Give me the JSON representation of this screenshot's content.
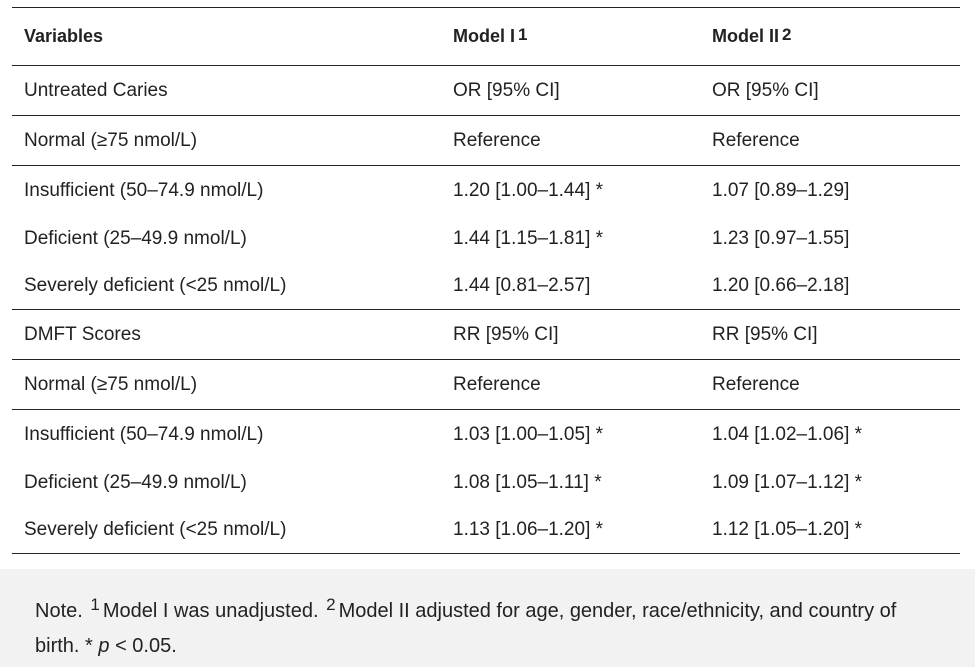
{
  "table": {
    "headers": [
      {
        "label": "Variables",
        "sup": ""
      },
      {
        "label": "Model I",
        "sup": "1"
      },
      {
        "label": "Model II",
        "sup": "2"
      }
    ],
    "rows": [
      [
        "Untreated Caries",
        "OR [95% CI]",
        "OR [95% CI]"
      ],
      [
        "Normal (≥75 nmol/L)",
        "Reference",
        "Reference"
      ],
      [
        "Insufficient (50–74.9 nmol/L)",
        "1.20 [1.00–1.44] *",
        "1.07 [0.89–1.29]"
      ],
      [
        "Deficient (25–49.9 nmol/L)",
        "1.44 [1.15–1.81] *",
        "1.23 [0.97–1.55]"
      ],
      [
        "Severely deficient (<25 nmol/L)",
        "1.44 [0.81–2.57]",
        "1.20 [0.66–2.18]"
      ],
      [
        "DMFT Scores",
        "RR [95% CI]",
        "RR [95% CI]"
      ],
      [
        "Normal (≥75 nmol/L)",
        "Reference",
        "Reference"
      ],
      [
        "Insufficient (50–74.9 nmol/L)",
        "1.03 [1.00–1.05] *",
        "1.04 [1.02–1.06] *"
      ],
      [
        "Deficient (25–49.9 nmol/L)",
        "1.08 [1.05–1.11] *",
        "1.09 [1.07–1.12] *"
      ],
      [
        "Severely deficient (<25 nmol/L)",
        "1.13 [1.06–1.20] *",
        "1.12 [1.05–1.20] *"
      ]
    ]
  },
  "note": {
    "prefix": "Note.",
    "sup1": "1",
    "text1": "Model I was unadjusted.",
    "sup2": "2",
    "text2": "Model II adjusted for age, gender, race/ethnicity, and country of birth. *",
    "p_symbol": "p",
    "text3": "< 0.05."
  }
}
